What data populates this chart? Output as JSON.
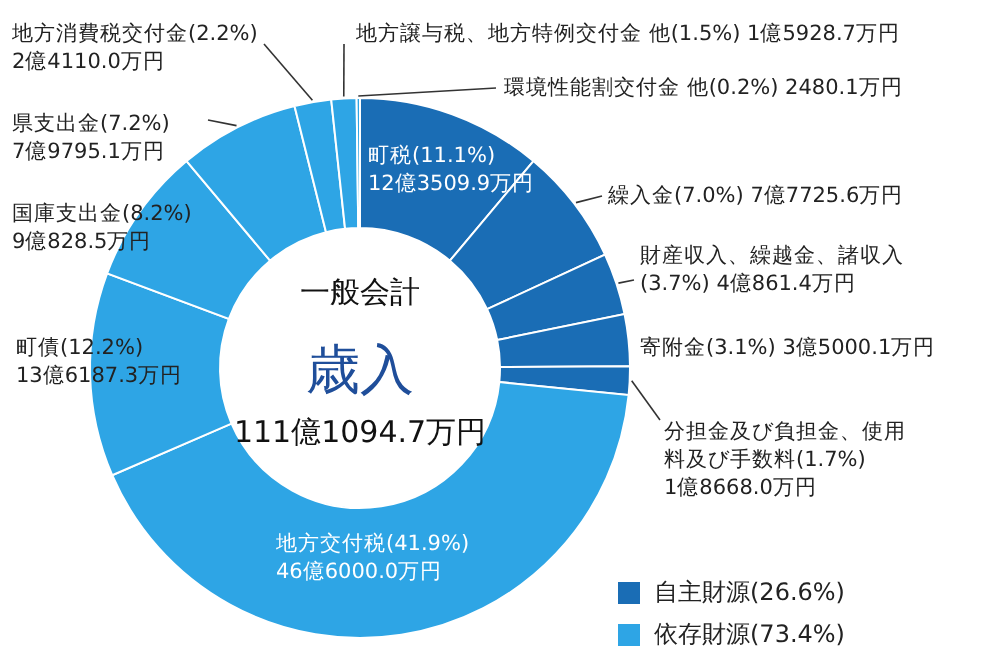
{
  "chart_data": {
    "type": "donut",
    "title": "歳入",
    "subtitle": "一般会計",
    "categories": [
      "町税",
      "繰入金",
      "財産収入、繰越金、諸収入",
      "寄附金",
      "分担金及び負担金、使用料及び手数料",
      "地方交付税",
      "町債",
      "国庫支出金",
      "県支出金",
      "地方消費税交付金",
      "地方譲与税、地方特例交付金 他",
      "環境性能割交付金 他"
    ],
    "values": [
      11.1,
      7.0,
      3.7,
      3.1,
      1.7,
      41.9,
      12.2,
      8.2,
      7.2,
      2.2,
      1.5,
      0.2
    ],
    "value_labels": [
      "(11.1%) 12億3509.9万円",
      "(7.0%) 7億7725.6万円",
      "(3.7%) 4億861.4万円",
      "(3.1%) 3億5000.1万円",
      "(1.7%) 1億8668.0万円",
      "(41.9%) 46億6000.0万円",
      "(12.2%) 13億6187.3万円",
      "(8.2%) 9億828.5万円",
      "(7.2%) 7億9795.1万円",
      "(2.2%) 2億4110.0万円",
      "(1.5%) 1億5928.7万円",
      "(0.2%) 2480.1万円"
    ],
    "colors": [
      "#1a6db5",
      "#1a6db5",
      "#1a6db5",
      "#1a6db5",
      "#1a6db5",
      "#2ea5e5",
      "#2ea5e5",
      "#2ea5e5",
      "#2ea5e5",
      "#2ea5e5",
      "#2ea5e5",
      "#2ea5e5"
    ],
    "annotations": [
      "111億1094.7万円",
      "自主財源(26.6%)",
      "依存財源(73.4%)"
    ]
  }
}
